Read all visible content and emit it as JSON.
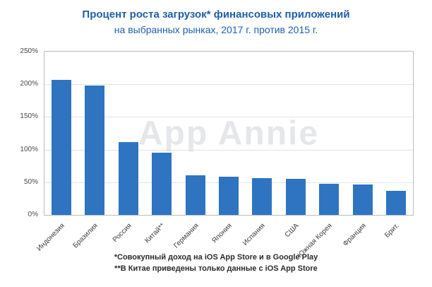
{
  "title": {
    "line1": "Процент роста загрузок* финансовых приложений",
    "line2": "на выбранных рынках, 2017 г. против 2015 г."
  },
  "watermark": "App Annie",
  "footnotes": [
    "*Совокупный доход на iOS App Store и в Google Play",
    "**В Китае приведены только данные с iOS App Store"
  ],
  "colors": {
    "bar": "#2e74c1",
    "title_text": "#1d5fa9",
    "watermark": "#e4e4e4",
    "grid": "#e2e2e2"
  },
  "chart_data": {
    "type": "bar",
    "title": "Процент роста загрузок* финансовых приложений на выбранных рынках, 2017 г. против 2015 г.",
    "categories": [
      "Индонезия",
      "Бразилия",
      "Россия",
      "Китай**",
      "Германия",
      "Япония",
      "Испания",
      "США",
      "Южная Корея",
      "Франция",
      "Брит."
    ],
    "values": [
      207,
      198,
      112,
      95,
      61,
      58,
      56,
      55,
      48,
      47,
      37
    ],
    "unit": "%",
    "y_ticks": [
      "0%",
      "50%",
      "100%",
      "150%",
      "200%",
      "250%"
    ],
    "ylim": [
      0,
      250
    ],
    "grid": true,
    "legend": "none"
  }
}
